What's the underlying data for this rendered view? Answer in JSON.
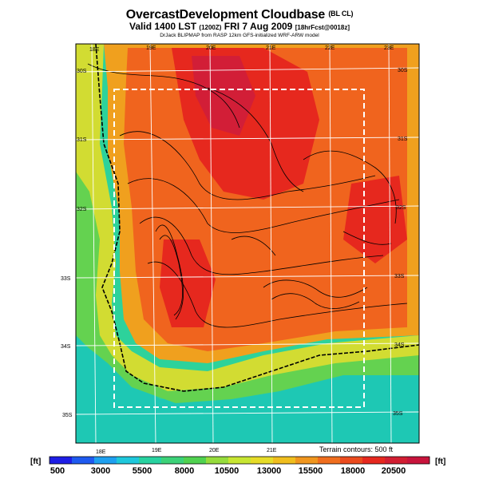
{
  "title": {
    "main": "OvercastDevelopment Cloudbase",
    "tag": "(BL CL)"
  },
  "subtitle": {
    "valid": "Valid 1400 LST",
    "valid_utc": "(1200Z)",
    "date": "FRI 7 Aug 2009",
    "forecast_ref": "[18hrFcst@0018z]"
  },
  "credit": "DrJack BLIPMAP from RASP 12km GFS-initialized WRF-ARW model",
  "terrain_note": "Terrain contours: 500 ft",
  "colorbar": {
    "unit_left": "[ft]",
    "unit_right": "[ft]",
    "labels": [
      "500",
      "3000",
      "5500",
      "8000",
      "10500",
      "13000",
      "15500",
      "18000",
      "20500"
    ],
    "colors": [
      "#1e1ee6",
      "#1e5af0",
      "#1ea0f0",
      "#1ec8dc",
      "#28d2a0",
      "#3cd278",
      "#50d250",
      "#96dc3c",
      "#c8e632",
      "#e6dc28",
      "#f0be1e",
      "#f0961e",
      "#f06e1e",
      "#eb4b1e",
      "#e6281e",
      "#d21e32",
      "#c8143c"
    ]
  },
  "map": {
    "top_lon_labels": [
      "18E",
      "19E",
      "20E",
      "21E",
      "22E",
      "23E"
    ],
    "bottom_lon_labels": [
      "18E",
      "19E",
      "20E",
      "21E"
    ],
    "left_lat_labels": [
      "30S",
      "31S",
      "32S",
      "33S",
      "34S",
      "35S"
    ],
    "right_lat_labels": [
      "30S",
      "31S",
      "32S",
      "33S",
      "34S",
      "35S"
    ],
    "colors": {
      "ocean_deep": "#1ec8b4",
      "ocean": "#2dd29b",
      "coast": "#64d250",
      "mid": "#d2dc32",
      "warm": "#f0a01e",
      "hot": "#f0641e",
      "very_hot": "#e6281e",
      "peak": "#d21e37",
      "frame": "#ffffff",
      "contour": "#000000"
    }
  }
}
